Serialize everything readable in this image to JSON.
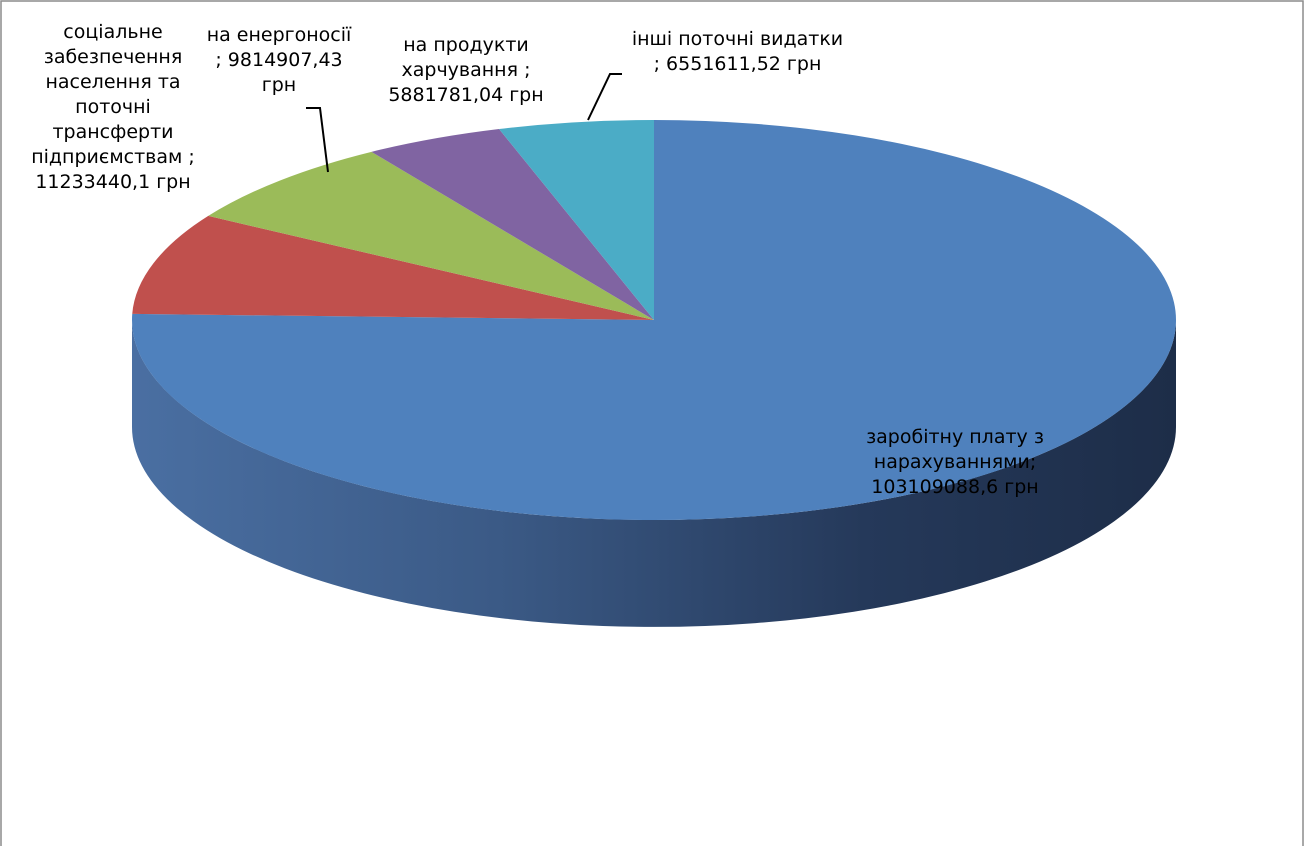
{
  "chart_data": {
    "type": "pie",
    "is_3d": true,
    "legend": "none",
    "slices": [
      {
        "label": "заробітну плату з нарахуваннями",
        "value": 103109088.6,
        "display": "заробітну плату з\nнарахуваннями;\n103109088,6 грн",
        "color": "#4F81BD"
      },
      {
        "label": "соціальне забезпечення населення та поточні трансферти підприємствам",
        "value": 11233440.1,
        "display": "соціальне\nзабезпечення\nнаселення та\nпоточні\nтрансферти\nпідприємствам ;\n11233440,1 грн",
        "color": "#C0504D"
      },
      {
        "label": "на енергоносії",
        "value": 9814907.43,
        "display": "на енергоносії\n; 9814907,43\nгрн",
        "color": "#9BBB59"
      },
      {
        "label": "на продукти харчування",
        "value": 5881781.04,
        "display": "на продукти\nхарчування ;\n5881781,04 грн",
        "color": "#8064A2"
      },
      {
        "label": "інші поточні видатки",
        "value": 6551611.52,
        "display": "інші поточні видатки\n; 6551611,52 грн",
        "color": "#4BACC6"
      }
    ]
  }
}
